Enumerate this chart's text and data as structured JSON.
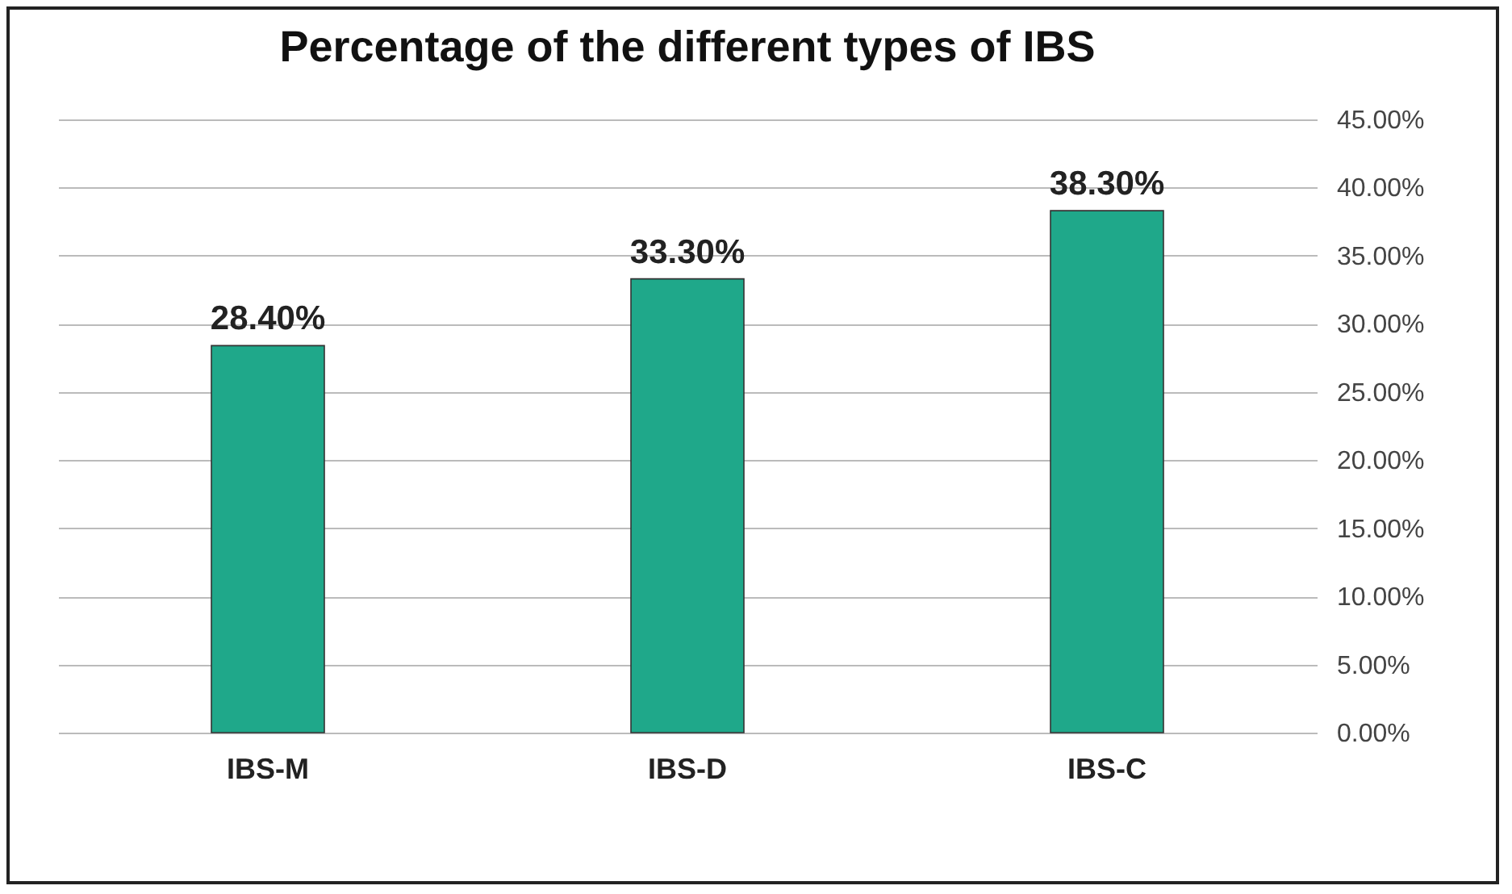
{
  "chart_data": {
    "type": "bar",
    "title": "Percentage of the different types of IBS",
    "categories": [
      "IBS-M",
      "IBS-D",
      "IBS-C"
    ],
    "values": [
      28.4,
      33.3,
      38.3
    ],
    "value_labels": [
      "28.40%",
      "33.30%",
      "38.30%"
    ],
    "color": "#1fa88a",
    "ylim": [
      0,
      45
    ],
    "yticks": [
      {
        "value": 0,
        "label": "0.00%"
      },
      {
        "value": 5,
        "label": "5.00%"
      },
      {
        "value": 10,
        "label": "10.00%"
      },
      {
        "value": 15,
        "label": "15.00%"
      },
      {
        "value": 20,
        "label": "20.00%"
      },
      {
        "value": 25,
        "label": "25.00%"
      },
      {
        "value": 30,
        "label": "30.00%"
      },
      {
        "value": 35,
        "label": "35.00%"
      },
      {
        "value": 40,
        "label": "40.00%"
      },
      {
        "value": 45,
        "label": "45.00%"
      }
    ],
    "grid": "y"
  }
}
